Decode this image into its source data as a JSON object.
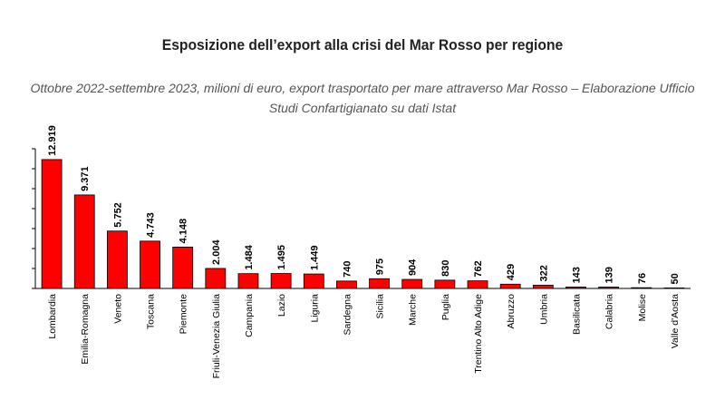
{
  "chart_data": {
    "type": "bar",
    "title": "Esposizione dell’export alla crisi del Mar Rosso per regione",
    "subtitle": "Ottobre 2022-settembre 2023, milioni di euro, export trasportato per mare attraverso Mar Rosso – Elaborazione Ufficio Studi Confartigianato su dati Istat",
    "categories": [
      "Lombardia",
      "Emilia-Romagna",
      "Veneto",
      "Toscana",
      "Piemonte",
      "Friuli-Venezia Giulia",
      "Campania",
      "Lazio",
      "Liguria",
      "Sardegna",
      "Sicilia",
      "Marche",
      "Puglia",
      "Trentino Alto Adige",
      "Abruzzo",
      "Umbria",
      "Basilicata",
      "Calabria",
      "Molise",
      "Valle d'Aosta"
    ],
    "values": [
      12919,
      9371,
      5752,
      4743,
      4148,
      2004,
      1484,
      1495,
      1449,
      740,
      975,
      904,
      830,
      762,
      429,
      322,
      143,
      139,
      76,
      50
    ],
    "data_labels": [
      "12.919",
      "9.371",
      "5.752",
      "4.743",
      "4.148",
      "2.004",
      "1.484",
      "1.495",
      "1.449",
      "740",
      "975",
      "904",
      "830",
      "762",
      "429",
      "322",
      "143",
      "139",
      "76",
      "50"
    ],
    "ylim": [
      0,
      14000
    ],
    "y_tick_step": 2000,
    "y_tick_labels_visible": false,
    "grid": false,
    "bar_color": "#ff0000"
  }
}
